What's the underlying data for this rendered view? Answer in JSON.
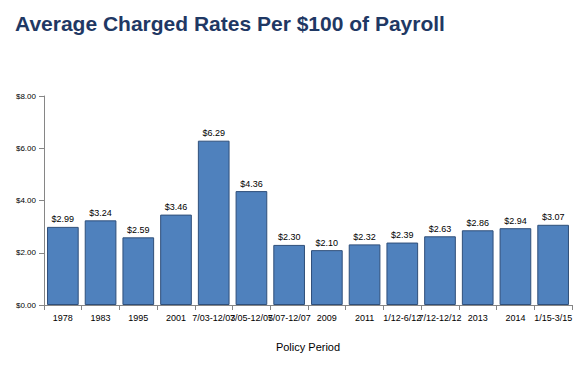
{
  "chart_data": {
    "type": "bar",
    "title": "Average Charged Rates Per $100 of Payroll",
    "x_label": "Policy Period",
    "categories": [
      "1978",
      "1983",
      "1995",
      "2001",
      "7/03-12/03",
      "7/05-12/05",
      "7/07-12/07",
      "2009",
      "2011",
      "1/12-6/12",
      "7/12-12/12",
      "2013",
      "2014",
      "1/15-3/15"
    ],
    "values": [
      2.99,
      3.24,
      2.59,
      3.46,
      6.29,
      4.36,
      2.3,
      2.1,
      2.32,
      2.39,
      2.63,
      2.86,
      2.94,
      3.07
    ],
    "value_labels": [
      "$2.99",
      "$3.24",
      "$2.59",
      "$3.46",
      "$6.29",
      "$4.36",
      "$2.30",
      "$2.10",
      "$2.32",
      "$2.39",
      "$2.63",
      "$2.86",
      "$2.94",
      "$3.07"
    ],
    "data_labels": true,
    "color": "#4f81bd",
    "ylim": [
      0,
      8
    ],
    "yticks": [
      {
        "value": 0,
        "label": "$0.00"
      },
      {
        "value": 2,
        "label": "$2.00"
      },
      {
        "value": 4,
        "label": "$4.00"
      },
      {
        "value": 6,
        "label": "$6.00"
      },
      {
        "value": 8,
        "label": "$8.00"
      }
    ],
    "grid": false
  }
}
